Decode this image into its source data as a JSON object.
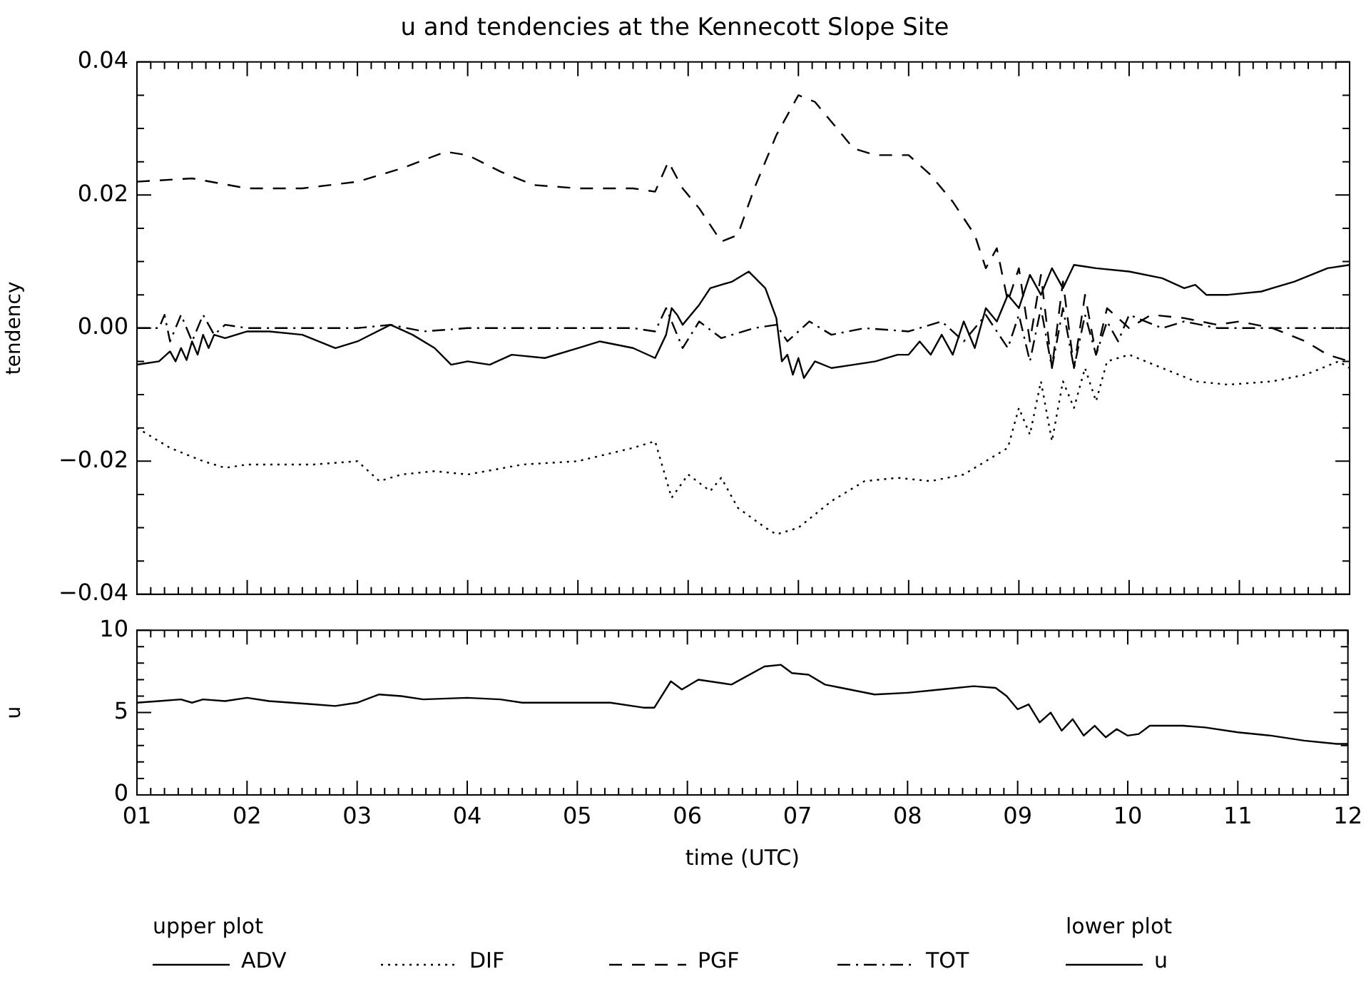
{
  "chart_data": [
    {
      "type": "line",
      "title": "u and tendencies at the Kennecott Slope Site",
      "ylabel": "tendency",
      "legend_title": "upper plot",
      "legend": "bottom",
      "marker": "none",
      "tick_labels": "y",
      "grid": false,
      "xlim": [
        1,
        12
      ],
      "xticks": [
        1,
        {
          "value": 1.125,
          "label": null
        },
        {
          "value": 1.25,
          "label": null
        },
        {
          "value": 1.375,
          "label": null
        },
        {
          "value": 1.5,
          "label": null
        },
        {
          "value": 1.625,
          "label": null
        },
        {
          "value": 1.75,
          "label": null
        },
        {
          "value": 1.875,
          "label": null
        },
        2,
        {
          "value": 2.125,
          "label": null
        },
        {
          "value": 2.25,
          "label": null
        },
        {
          "value": 2.375,
          "label": null
        },
        {
          "value": 2.5,
          "label": null
        },
        {
          "value": 2.625,
          "label": null
        },
        {
          "value": 2.75,
          "label": null
        },
        {
          "value": 2.875,
          "label": null
        },
        3,
        {
          "value": 3.125,
          "label": null
        },
        {
          "value": 3.25,
          "label": null
        },
        {
          "value": 3.375,
          "label": null
        },
        {
          "value": 3.5,
          "label": null
        },
        {
          "value": 3.625,
          "label": null
        },
        {
          "value": 3.75,
          "label": null
        },
        {
          "value": 3.875,
          "label": null
        },
        4,
        {
          "value": 4.125,
          "label": null
        },
        {
          "value": 4.25,
          "label": null
        },
        {
          "value": 4.375,
          "label": null
        },
        {
          "value": 4.5,
          "label": null
        },
        {
          "value": 4.625,
          "label": null
        },
        {
          "value": 4.75,
          "label": null
        },
        {
          "value": 4.875,
          "label": null
        },
        5,
        {
          "value": 5.125,
          "label": null
        },
        {
          "value": 5.25,
          "label": null
        },
        {
          "value": 5.375,
          "label": null
        },
        {
          "value": 5.5,
          "label": null
        },
        {
          "value": 5.625,
          "label": null
        },
        {
          "value": 5.75,
          "label": null
        },
        {
          "value": 5.875,
          "label": null
        },
        6,
        {
          "value": 6.125,
          "label": null
        },
        {
          "value": 6.25,
          "label": null
        },
        {
          "value": 6.375,
          "label": null
        },
        {
          "value": 6.5,
          "label": null
        },
        {
          "value": 6.625,
          "label": null
        },
        {
          "value": 6.75,
          "label": null
        },
        {
          "value": 6.875,
          "label": null
        },
        7,
        {
          "value": 7.125,
          "label": null
        },
        {
          "value": 7.25,
          "label": null
        },
        {
          "value": 7.375,
          "label": null
        },
        {
          "value": 7.5,
          "label": null
        },
        {
          "value": 7.625,
          "label": null
        },
        {
          "value": 7.75,
          "label": null
        },
        {
          "value": 7.875,
          "label": null
        },
        8,
        {
          "value": 8.125,
          "label": null
        },
        {
          "value": 8.25,
          "label": null
        },
        {
          "value": 8.375,
          "label": null
        },
        {
          "value": 8.5,
          "label": null
        },
        {
          "value": 8.625,
          "label": null
        },
        {
          "value": 8.75,
          "label": null
        },
        {
          "value": 8.875,
          "label": null
        },
        9,
        {
          "value": 9.125,
          "label": null
        },
        {
          "value": 9.25,
          "label": null
        },
        {
          "value": 9.375,
          "label": null
        },
        {
          "value": 9.5,
          "label": null
        },
        {
          "value": 9.625,
          "label": null
        },
        {
          "value": 9.75,
          "label": null
        },
        {
          "value": 9.875,
          "label": null
        },
        10,
        {
          "value": 10.125,
          "label": null
        },
        {
          "value": 10.25,
          "label": null
        },
        {
          "value": 10.375,
          "label": null
        },
        {
          "value": 10.5,
          "label": null
        },
        {
          "value": 10.625,
          "label": null
        },
        {
          "value": 10.75,
          "label": null
        },
        {
          "value": 10.875,
          "label": null
        },
        11,
        {
          "value": 11.125,
          "label": null
        },
        {
          "value": 11.25,
          "label": null
        },
        {
          "value": 11.375,
          "label": null
        },
        {
          "value": 11.5,
          "label": null
        },
        {
          "value": 11.625,
          "label": null
        },
        {
          "value": 11.75,
          "label": null
        },
        {
          "value": 11.875,
          "label": null
        },
        12
      ],
      "ylim": [
        -0.04,
        0.04
      ],
      "yticks": [
        {
          "value": -0.04,
          "label": "−0.04"
        },
        {
          "value": -0.035,
          "label": null
        },
        {
          "value": -0.03,
          "label": null
        },
        {
          "value": -0.025,
          "label": null
        },
        {
          "value": -0.02,
          "label": "−0.02"
        },
        {
          "value": -0.015,
          "label": null
        },
        {
          "value": -0.01,
          "label": null
        },
        {
          "value": -0.005,
          "label": null
        },
        {
          "value": 0,
          "label": "0.00"
        },
        {
          "value": 0.005,
          "label": null
        },
        {
          "value": 0.01,
          "label": null
        },
        {
          "value": 0.015,
          "label": null
        },
        {
          "value": 0.02,
          "label": "0.02"
        },
        {
          "value": 0.025,
          "label": null
        },
        {
          "value": 0.03,
          "label": null
        },
        {
          "value": 0.035,
          "label": null
        },
        {
          "value": 0.04,
          "label": "0.04"
        }
      ],
      "series": [
        {
          "name": "ADV",
          "color": "#000000",
          "line_style": "solid",
          "x": [
            1.0,
            1.2,
            1.3,
            1.35,
            1.4,
            1.45,
            1.5,
            1.55,
            1.6,
            1.65,
            1.7,
            1.8,
            1.9,
            2.0,
            2.2,
            2.5,
            2.8,
            3.0,
            3.3,
            3.5,
            3.7,
            3.85,
            4.0,
            4.2,
            4.4,
            4.7,
            5.0,
            5.2,
            5.5,
            5.7,
            5.8,
            5.85,
            5.9,
            5.95,
            6.1,
            6.2,
            6.4,
            6.55,
            6.7,
            6.8,
            6.85,
            6.9,
            6.95,
            7.0,
            7.05,
            7.15,
            7.3,
            7.5,
            7.7,
            7.9,
            8.0,
            8.1,
            8.2,
            8.3,
            8.4,
            8.5,
            8.6,
            8.7,
            8.8,
            8.9,
            9.0,
            9.1,
            9.2,
            9.3,
            9.4,
            9.5,
            9.7,
            10.0,
            10.3,
            10.5,
            10.6,
            10.7,
            10.9,
            11.2,
            11.5,
            11.8,
            12.0
          ],
          "values": [
            -0.0055,
            -0.005,
            -0.0035,
            -0.005,
            -0.003,
            -0.0048,
            -0.002,
            -0.004,
            -0.001,
            -0.003,
            -0.001,
            -0.0015,
            -0.001,
            -0.0005,
            -0.0005,
            -0.001,
            -0.003,
            -0.002,
            0.0005,
            -0.001,
            -0.003,
            -0.0055,
            -0.005,
            -0.0055,
            -0.004,
            -0.0045,
            -0.003,
            -0.002,
            -0.003,
            -0.0045,
            -0.001,
            0.003,
            0.002,
            0.0005,
            0.0035,
            0.006,
            0.007,
            0.0085,
            0.006,
            0.0015,
            -0.005,
            -0.004,
            -0.007,
            -0.0045,
            -0.0075,
            -0.005,
            -0.006,
            -0.0055,
            -0.005,
            -0.004,
            -0.004,
            -0.002,
            -0.004,
            -0.001,
            -0.004,
            0.001,
            -0.003,
            0.003,
            0.001,
            0.005,
            0.003,
            0.008,
            0.005,
            0.009,
            0.006,
            0.0095,
            0.009,
            0.0085,
            0.0075,
            0.006,
            0.0065,
            0.005,
            0.005,
            0.0055,
            0.007,
            0.009,
            0.0095
          ]
        },
        {
          "name": "DIF",
          "color": "#000000",
          "line_style": "dotted",
          "x": [
            1.0,
            1.3,
            1.6,
            1.8,
            2.0,
            2.3,
            2.6,
            3.0,
            3.2,
            3.4,
            3.7,
            4.0,
            4.5,
            5.0,
            5.5,
            5.7,
            5.85,
            6.0,
            6.2,
            6.3,
            6.45,
            6.7,
            6.8,
            7.0,
            7.3,
            7.6,
            7.9,
            8.2,
            8.5,
            8.7,
            8.9,
            9.0,
            9.1,
            9.2,
            9.3,
            9.4,
            9.5,
            9.6,
            9.7,
            9.8,
            10.0,
            10.3,
            10.6,
            10.9,
            11.3,
            11.6,
            11.9,
            12.0
          ],
          "values": [
            -0.015,
            -0.018,
            -0.02,
            -0.021,
            -0.0205,
            -0.0205,
            -0.0205,
            -0.02,
            -0.023,
            -0.022,
            -0.0215,
            -0.022,
            -0.0205,
            -0.02,
            -0.018,
            -0.017,
            -0.0255,
            -0.022,
            -0.0245,
            -0.0225,
            -0.027,
            -0.03,
            -0.031,
            -0.03,
            -0.026,
            -0.023,
            -0.0225,
            -0.023,
            -0.022,
            -0.02,
            -0.018,
            -0.012,
            -0.016,
            -0.008,
            -0.017,
            -0.008,
            -0.012,
            -0.006,
            -0.011,
            -0.005,
            -0.004,
            -0.006,
            -0.008,
            -0.0085,
            -0.008,
            -0.007,
            -0.005,
            -0.006
          ]
        },
        {
          "name": "PGF",
          "color": "#000000",
          "line_style": "dashed",
          "x": [
            1.0,
            1.5,
            2.0,
            2.5,
            3.0,
            3.4,
            3.8,
            4.0,
            4.3,
            4.6,
            5.0,
            5.5,
            5.7,
            5.82,
            5.95,
            6.1,
            6.3,
            6.45,
            6.6,
            6.8,
            7.0,
            7.15,
            7.3,
            7.5,
            7.7,
            8.0,
            8.2,
            8.4,
            8.6,
            8.7,
            8.8,
            8.9,
            9.0,
            9.1,
            9.2,
            9.3,
            9.4,
            9.5,
            9.6,
            9.7,
            9.8,
            10.0,
            10.2,
            10.5,
            10.8,
            11.0,
            11.3,
            11.6,
            11.8,
            12.0
          ],
          "values": [
            0.022,
            0.0225,
            0.021,
            0.021,
            0.022,
            0.024,
            0.0265,
            0.026,
            0.0235,
            0.0215,
            0.021,
            0.021,
            0.0205,
            0.025,
            0.021,
            0.018,
            0.013,
            0.014,
            0.021,
            0.029,
            0.035,
            0.034,
            0.031,
            0.027,
            0.026,
            0.026,
            0.023,
            0.019,
            0.014,
            0.009,
            0.012,
            0.004,
            0.009,
            -0.002,
            0.008,
            -0.006,
            0.007,
            -0.006,
            0.005,
            -0.004,
            0.003,
            0.0,
            0.002,
            0.0015,
            0.0005,
            0.001,
            0.0,
            -0.002,
            -0.004,
            -0.005
          ]
        },
        {
          "name": "TOT",
          "color": "#000000",
          "line_style": "dashdot",
          "x": [
            1.0,
            1.2,
            1.25,
            1.3,
            1.4,
            1.5,
            1.6,
            1.7,
            1.8,
            2.0,
            2.5,
            3.0,
            3.3,
            3.6,
            4.0,
            4.5,
            5.0,
            5.5,
            5.7,
            5.8,
            5.95,
            6.1,
            6.3,
            6.6,
            6.8,
            6.9,
            7.1,
            7.3,
            7.6,
            8.0,
            8.3,
            8.5,
            8.7,
            8.9,
            9.0,
            9.1,
            9.2,
            9.3,
            9.4,
            9.5,
            9.6,
            9.7,
            9.8,
            9.9,
            10.0,
            10.3,
            10.5,
            10.8,
            11.2,
            11.6,
            12.0
          ],
          "values": [
            0,
            0,
            0.002,
            -0.002,
            0.002,
            -0.002,
            0.002,
            -0.001,
            0.0005,
            0,
            0,
            0,
            0.0005,
            -0.0005,
            0,
            0,
            0,
            0,
            -0.0005,
            0.003,
            -0.003,
            0.001,
            -0.0015,
            0,
            0.0005,
            -0.002,
            0.001,
            -0.001,
            0,
            -0.0005,
            0.001,
            -0.002,
            0.002,
            -0.003,
            0.002,
            -0.005,
            0.003,
            -0.006,
            0.003,
            -0.006,
            0.002,
            -0.004,
            0.001,
            -0.002,
            0.002,
            0,
            0.001,
            0,
            0,
            0,
            0
          ]
        }
      ]
    },
    {
      "type": "line",
      "xlabel": "time (UTC)",
      "ylabel": "u",
      "legend_title": "lower plot",
      "legend": "bottom",
      "marker": "none",
      "grid": false,
      "xlim": [
        1,
        12
      ],
      "xticks": [
        {
          "value": 1,
          "label": "01"
        },
        {
          "value": 1.125,
          "label": null
        },
        {
          "value": 1.25,
          "label": null
        },
        {
          "value": 1.375,
          "label": null
        },
        {
          "value": 1.5,
          "label": null
        },
        {
          "value": 1.625,
          "label": null
        },
        {
          "value": 1.75,
          "label": null
        },
        {
          "value": 1.875,
          "label": null
        },
        {
          "value": 2,
          "label": "02"
        },
        {
          "value": 2.125,
          "label": null
        },
        {
          "value": 2.25,
          "label": null
        },
        {
          "value": 2.375,
          "label": null
        },
        {
          "value": 2.5,
          "label": null
        },
        {
          "value": 2.625,
          "label": null
        },
        {
          "value": 2.75,
          "label": null
        },
        {
          "value": 2.875,
          "label": null
        },
        {
          "value": 3,
          "label": "03"
        },
        {
          "value": 3.125,
          "label": null
        },
        {
          "value": 3.25,
          "label": null
        },
        {
          "value": 3.375,
          "label": null
        },
        {
          "value": 3.5,
          "label": null
        },
        {
          "value": 3.625,
          "label": null
        },
        {
          "value": 3.75,
          "label": null
        },
        {
          "value": 3.875,
          "label": null
        },
        {
          "value": 4,
          "label": "04"
        },
        {
          "value": 4.125,
          "label": null
        },
        {
          "value": 4.25,
          "label": null
        },
        {
          "value": 4.375,
          "label": null
        },
        {
          "value": 4.5,
          "label": null
        },
        {
          "value": 4.625,
          "label": null
        },
        {
          "value": 4.75,
          "label": null
        },
        {
          "value": 4.875,
          "label": null
        },
        {
          "value": 5,
          "label": "05"
        },
        {
          "value": 5.125,
          "label": null
        },
        {
          "value": 5.25,
          "label": null
        },
        {
          "value": 5.375,
          "label": null
        },
        {
          "value": 5.5,
          "label": null
        },
        {
          "value": 5.625,
          "label": null
        },
        {
          "value": 5.75,
          "label": null
        },
        {
          "value": 5.875,
          "label": null
        },
        {
          "value": 6,
          "label": "06"
        },
        {
          "value": 6.125,
          "label": null
        },
        {
          "value": 6.25,
          "label": null
        },
        {
          "value": 6.375,
          "label": null
        },
        {
          "value": 6.5,
          "label": null
        },
        {
          "value": 6.625,
          "label": null
        },
        {
          "value": 6.75,
          "label": null
        },
        {
          "value": 6.875,
          "label": null
        },
        {
          "value": 7,
          "label": "07"
        },
        {
          "value": 7.125,
          "label": null
        },
        {
          "value": 7.25,
          "label": null
        },
        {
          "value": 7.375,
          "label": null
        },
        {
          "value": 7.5,
          "label": null
        },
        {
          "value": 7.625,
          "label": null
        },
        {
          "value": 7.75,
          "label": null
        },
        {
          "value": 7.875,
          "label": null
        },
        {
          "value": 8,
          "label": "08"
        },
        {
          "value": 8.125,
          "label": null
        },
        {
          "value": 8.25,
          "label": null
        },
        {
          "value": 8.375,
          "label": null
        },
        {
          "value": 8.5,
          "label": null
        },
        {
          "value": 8.625,
          "label": null
        },
        {
          "value": 8.75,
          "label": null
        },
        {
          "value": 8.875,
          "label": null
        },
        {
          "value": 9,
          "label": "09"
        },
        {
          "value": 9.125,
          "label": null
        },
        {
          "value": 9.25,
          "label": null
        },
        {
          "value": 9.375,
          "label": null
        },
        {
          "value": 9.5,
          "label": null
        },
        {
          "value": 9.625,
          "label": null
        },
        {
          "value": 9.75,
          "label": null
        },
        {
          "value": 9.875,
          "label": null
        },
        {
          "value": 10,
          "label": "10"
        },
        {
          "value": 10.125,
          "label": null
        },
        {
          "value": 10.25,
          "label": null
        },
        {
          "value": 10.375,
          "label": null
        },
        {
          "value": 10.5,
          "label": null
        },
        {
          "value": 10.625,
          "label": null
        },
        {
          "value": 10.75,
          "label": null
        },
        {
          "value": 10.875,
          "label": null
        },
        {
          "value": 11,
          "label": "11"
        },
        {
          "value": 11.125,
          "label": null
        },
        {
          "value": 11.25,
          "label": null
        },
        {
          "value": 11.375,
          "label": null
        },
        {
          "value": 11.5,
          "label": null
        },
        {
          "value": 11.625,
          "label": null
        },
        {
          "value": 11.75,
          "label": null
        },
        {
          "value": 11.875,
          "label": null
        },
        {
          "value": 12,
          "label": "12"
        }
      ],
      "ylim": [
        0,
        10
      ],
      "yticks": [
        0,
        {
          "value": 1,
          "label": null
        },
        {
          "value": 2,
          "label": null
        },
        {
          "value": 3,
          "label": null
        },
        {
          "value": 4,
          "label": null
        },
        5,
        {
          "value": 6,
          "label": null
        },
        {
          "value": 7,
          "label": null
        },
        {
          "value": 8,
          "label": null
        },
        {
          "value": 9,
          "label": null
        },
        10
      ],
      "series": [
        {
          "name": "u",
          "color": "#000000",
          "line_style": "solid",
          "x": [
            1.0,
            1.2,
            1.4,
            1.5,
            1.6,
            1.8,
            2.0,
            2.2,
            2.6,
            2.8,
            3.0,
            3.2,
            3.4,
            3.6,
            4.0,
            4.3,
            4.5,
            5.0,
            5.3,
            5.6,
            5.7,
            5.85,
            5.95,
            6.1,
            6.4,
            6.7,
            6.85,
            6.95,
            7.1,
            7.25,
            7.4,
            7.7,
            8.0,
            8.3,
            8.6,
            8.8,
            8.9,
            9.0,
            9.1,
            9.2,
            9.3,
            9.4,
            9.5,
            9.6,
            9.7,
            9.8,
            9.9,
            10.0,
            10.1,
            10.2,
            10.5,
            10.7,
            11.0,
            11.3,
            11.6,
            11.9,
            12.0
          ],
          "values": [
            5.6,
            5.7,
            5.8,
            5.6,
            5.8,
            5.7,
            5.9,
            5.7,
            5.5,
            5.4,
            5.6,
            6.1,
            6.0,
            5.8,
            5.9,
            5.8,
            5.6,
            5.6,
            5.6,
            5.3,
            5.3,
            6.9,
            6.4,
            7.0,
            6.7,
            7.8,
            7.9,
            7.4,
            7.3,
            6.7,
            6.5,
            6.1,
            6.2,
            6.4,
            6.6,
            6.5,
            6.0,
            5.2,
            5.5,
            4.4,
            5.0,
            3.9,
            4.6,
            3.6,
            4.2,
            3.5,
            4.0,
            3.6,
            3.7,
            4.2,
            4.2,
            4.1,
            3.8,
            3.6,
            3.3,
            3.1,
            3.1
          ]
        }
      ]
    }
  ]
}
